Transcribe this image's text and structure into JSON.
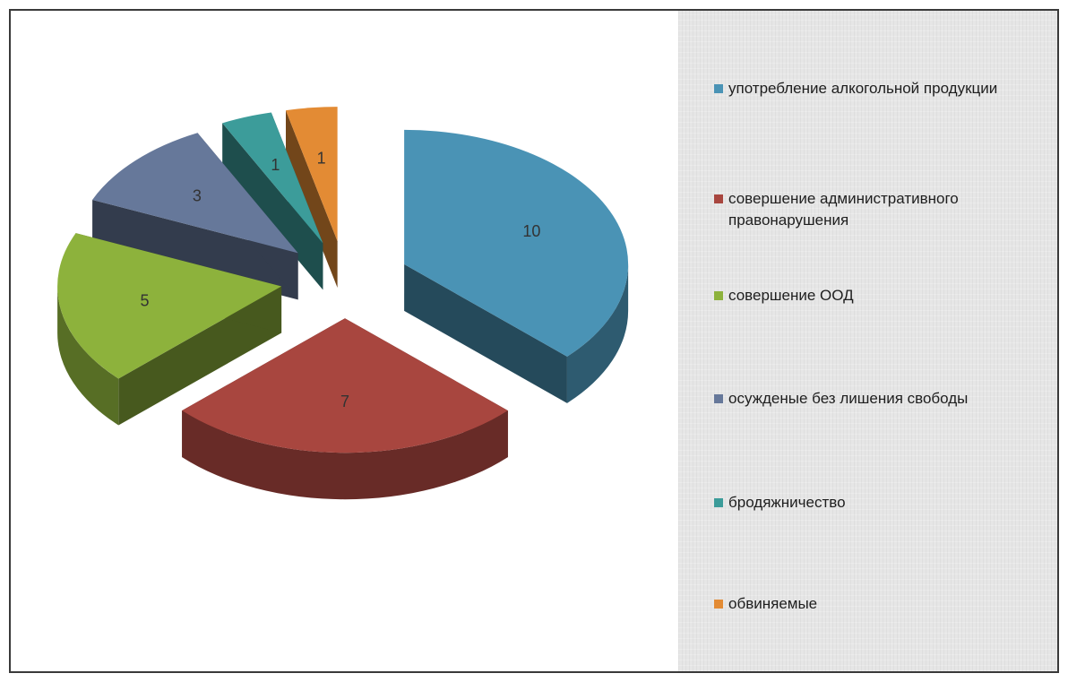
{
  "chart_data": {
    "type": "pie",
    "style": "exploded-3d",
    "show_data_labels": true,
    "legend_position": "right",
    "slices": [
      {
        "label": "употребление алкогольной продукции",
        "value": 10,
        "color": "#4a93b5"
      },
      {
        "label": "совершение административного правонарушения",
        "value": 7,
        "color": "#a8463f"
      },
      {
        "label": "совершение ООД",
        "value": 5,
        "color": "#8db23c"
      },
      {
        "label": "осужденые без лишения свободы",
        "value": 3,
        "color": "#66789a"
      },
      {
        "label": "бродяжничество",
        "value": 1,
        "color": "#3c9c9a"
      },
      {
        "label": "обвиняемые",
        "value": 1,
        "color": "#e38b34"
      }
    ]
  }
}
